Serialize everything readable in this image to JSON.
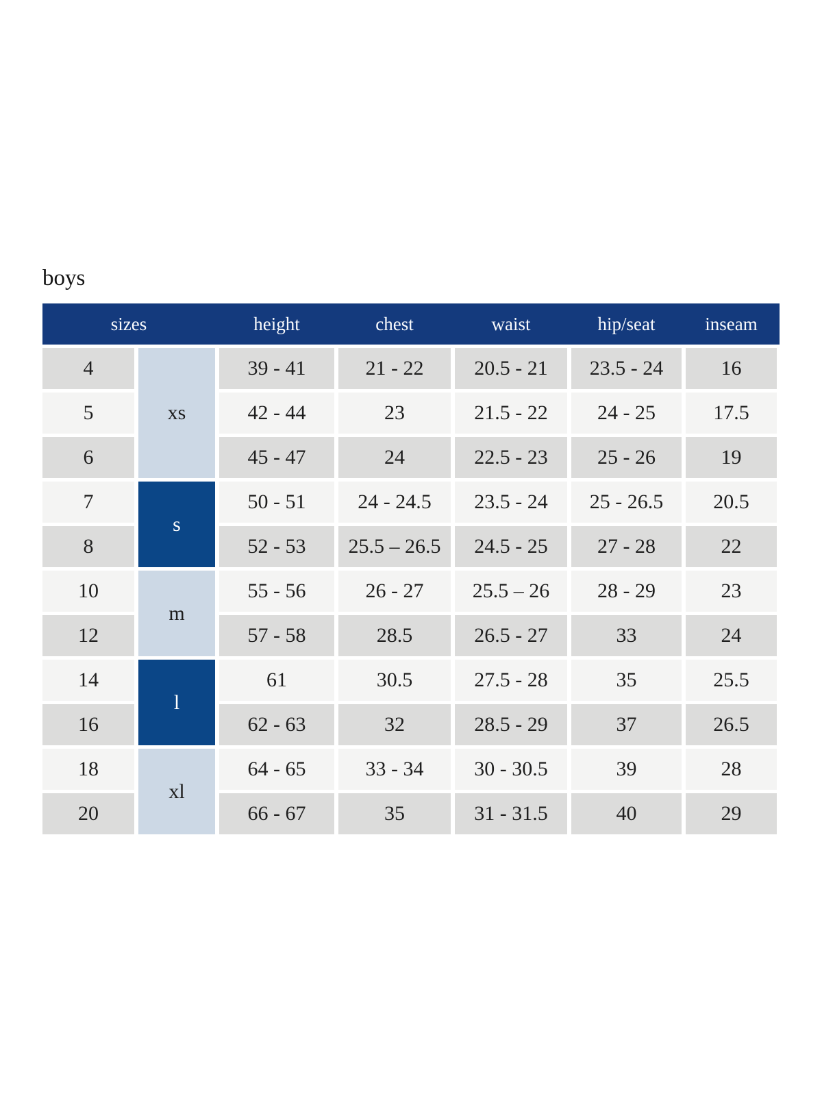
{
  "page": {
    "title": "boys",
    "background": "#ffffff"
  },
  "table": {
    "headers": [
      "sizes",
      "height",
      "chest",
      "waist",
      "hip/seat",
      "inseam"
    ],
    "groups": [
      {
        "label": "xs",
        "rows_spanned": 3,
        "tone": "light"
      },
      {
        "label": "s",
        "rows_spanned": 2,
        "tone": "dark"
      },
      {
        "label": "m",
        "rows_spanned": 2,
        "tone": "light"
      },
      {
        "label": "l",
        "rows_spanned": 2,
        "tone": "dark"
      },
      {
        "label": "xl",
        "rows_spanned": 2,
        "tone": "light"
      }
    ],
    "rows": [
      {
        "size": "4",
        "height": "39 - 41",
        "chest": "21 - 22",
        "waist": "20.5 - 21",
        "hip_seat": "23.5 - 24",
        "inseam": "16"
      },
      {
        "size": "5",
        "height": "42 - 44",
        "chest": "23",
        "waist": "21.5 - 22",
        "hip_seat": "24 - 25",
        "inseam": "17.5"
      },
      {
        "size": "6",
        "height": "45 - 47",
        "chest": "24",
        "waist": "22.5 - 23",
        "hip_seat": "25 - 26",
        "inseam": "19"
      },
      {
        "size": "7",
        "height": "50 - 51",
        "chest": "24 - 24.5",
        "waist": "23.5 - 24",
        "hip_seat": "25 - 26.5",
        "inseam": "20.5"
      },
      {
        "size": "8",
        "height": "52 - 53",
        "chest": "25.5 – 26.5",
        "waist": "24.5 - 25",
        "hip_seat": "27 - 28",
        "inseam": "22"
      },
      {
        "size": "10",
        "height": "55 - 56",
        "chest": "26 - 27",
        "waist": "25.5 – 26",
        "hip_seat": "28 - 29",
        "inseam": "23"
      },
      {
        "size": "12",
        "height": "57 - 58",
        "chest": "28.5",
        "waist": "26.5 - 27",
        "hip_seat": "33",
        "inseam": "24"
      },
      {
        "size": "14",
        "height": "61",
        "chest": "30.5",
        "waist": "27.5 - 28",
        "hip_seat": "35",
        "inseam": "25.5"
      },
      {
        "size": "16",
        "height": "62 - 63",
        "chest": "32",
        "waist": "28.5 - 29",
        "hip_seat": "37",
        "inseam": "26.5"
      },
      {
        "size": "18",
        "height": "64 - 65",
        "chest": "33 - 34",
        "waist": "30 - 30.5",
        "hip_seat": "39",
        "inseam": "28"
      },
      {
        "size": "20",
        "height": "66 - 67",
        "chest": "35",
        "waist": "31 - 31.5",
        "hip_seat": "40",
        "inseam": "29"
      }
    ],
    "colors": {
      "header_bg": "#143a7d",
      "header_text": "#ffffff",
      "group_dark_bg": "#0b4687",
      "group_dark_text": "#ffffff",
      "group_light_bg": "#ccd8e5",
      "row_shade_dark": "#dcdcdb",
      "row_shade_light": "#f4f4f3",
      "body_text": "#1e1e1e"
    }
  }
}
